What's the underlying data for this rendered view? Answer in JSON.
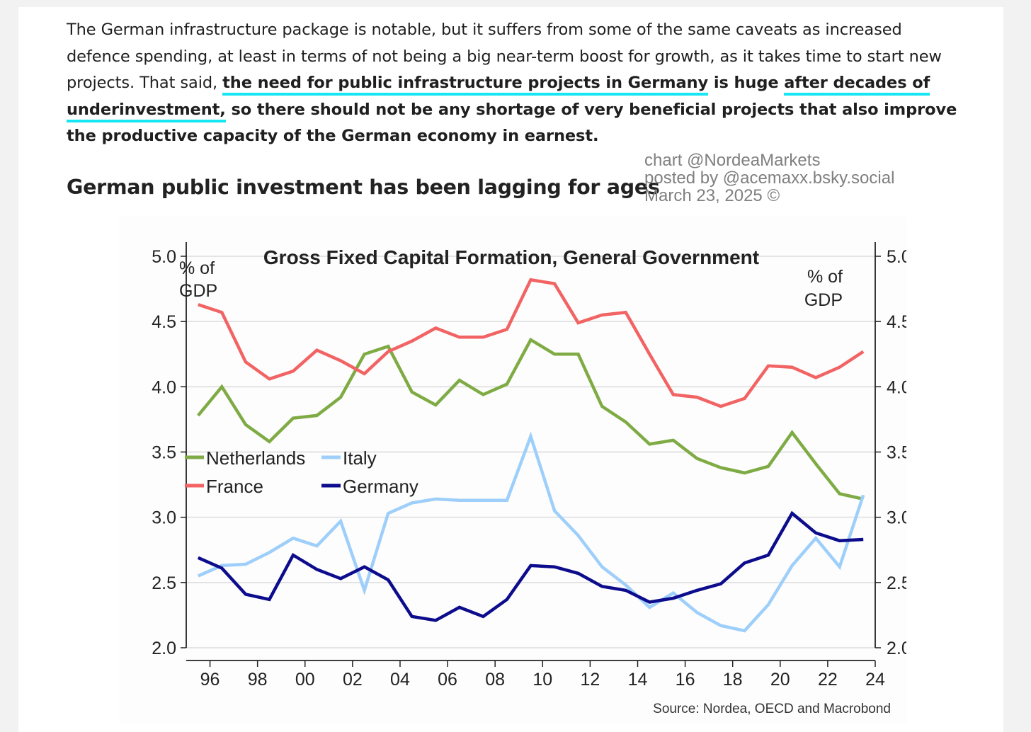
{
  "article": {
    "para_part1": "The German infrastructure package is notable, but it suffers from some of the same caveats as increased defence spending, at least in terms of not being a big near-term boost for growth, as it takes time to start new projects. That said, ",
    "para_hl1": "the need for public infrastructure projects in Germany",
    "para_part2": " is huge ",
    "para_hl2": "after decades of underinvestment,",
    "para_part3": " so there should not be any shortage of very beneficial projects that also improve the productive capacity of the German economy in earnest.",
    "heading": "German public investment has been lagging for ages",
    "highlight_color": "#16e6f2"
  },
  "credit": {
    "line1": "chart @NordeaMarkets",
    "line2": "posted by @acemaxx.bsky.social",
    "line3": "March 23, 2025 ©"
  },
  "chart_data": {
    "type": "line",
    "title": "Gross Fixed Capital Formation, General Government",
    "ylabel_left": [
      "% of",
      "GDP"
    ],
    "ylabel_right": [
      "% of",
      "GDP"
    ],
    "source": "Source: Nordea, OECD and Macrobond",
    "x": [
      1995,
      1996,
      1997,
      1998,
      1999,
      2000,
      2001,
      2002,
      2003,
      2004,
      2005,
      2006,
      2007,
      2008,
      2009,
      2010,
      2011,
      2012,
      2013,
      2014,
      2015,
      2016,
      2017,
      2018,
      2019,
      2020,
      2021,
      2022,
      2023
    ],
    "xlim": [
      1995,
      2024
    ],
    "x_ticks": [
      "96",
      "98",
      "00",
      "02",
      "04",
      "06",
      "08",
      "10",
      "12",
      "14",
      "16",
      "18",
      "20",
      "22",
      "24"
    ],
    "ylim": [
      2.0,
      5.0
    ],
    "y_ticks": [
      "2.0",
      "2.5",
      "3.0",
      "3.5",
      "4.0",
      "4.5",
      "5.0"
    ],
    "grid": true,
    "legend_position": "middle-left",
    "series": [
      {
        "name": "Netherlands",
        "color": "#7fab45",
        "values": [
          3.78,
          4.0,
          3.71,
          3.58,
          3.76,
          3.78,
          3.92,
          4.25,
          4.31,
          3.96,
          3.86,
          4.05,
          3.94,
          4.02,
          4.36,
          4.25,
          4.25,
          3.85,
          3.73,
          3.56,
          3.59,
          3.45,
          3.38,
          3.34,
          3.39,
          3.65,
          3.41,
          3.18,
          3.14
        ]
      },
      {
        "name": "France",
        "color": "#f26363",
        "values": [
          4.63,
          4.57,
          4.19,
          4.06,
          4.12,
          4.28,
          4.2,
          4.1,
          4.27,
          4.35,
          4.45,
          4.38,
          4.38,
          4.44,
          4.82,
          4.79,
          4.49,
          4.55,
          4.57,
          4.25,
          3.94,
          3.92,
          3.85,
          3.91,
          4.16,
          4.15,
          4.07,
          4.15,
          4.27
        ]
      },
      {
        "name": "Italy",
        "color": "#9ecffa",
        "values": [
          2.55,
          2.63,
          2.64,
          2.73,
          2.84,
          2.78,
          2.97,
          2.44,
          3.03,
          3.11,
          3.14,
          3.13,
          3.13,
          3.13,
          3.62,
          3.05,
          2.86,
          2.62,
          2.48,
          2.31,
          2.42,
          2.27,
          2.17,
          2.13,
          2.33,
          2.63,
          2.84,
          2.62,
          3.17
        ]
      },
      {
        "name": "Germany",
        "color": "#0c0c8c",
        "values": [
          2.69,
          2.61,
          2.41,
          2.37,
          2.71,
          2.6,
          2.53,
          2.62,
          2.52,
          2.24,
          2.21,
          2.31,
          2.24,
          2.37,
          2.63,
          2.62,
          2.57,
          2.47,
          2.44,
          2.35,
          2.38,
          2.44,
          2.49,
          2.65,
          2.71,
          3.03,
          2.88,
          2.82,
          2.83
        ]
      }
    ]
  }
}
